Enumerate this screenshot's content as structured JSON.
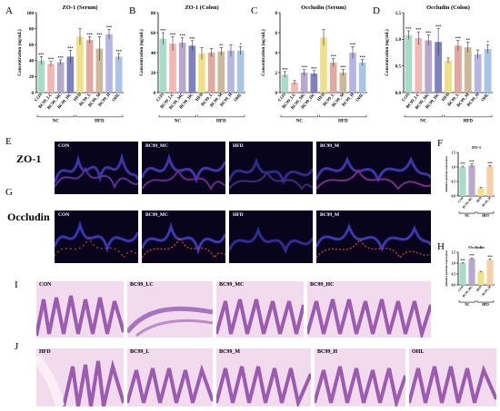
{
  "panel_letters": {
    "A": "A",
    "B": "B",
    "C": "C",
    "D": "D",
    "E": "E",
    "F": "F",
    "G": "G",
    "H": "H",
    "I": "I",
    "J": "J"
  },
  "microscopy": {
    "row_e_label": "ZO-1",
    "row_g_label": "Occludin",
    "images": [
      "CON",
      "BC99_MC",
      "HFD",
      "BC99_M"
    ]
  },
  "histology": {
    "row_i": [
      "CON",
      "BC99_LC",
      "BC99_MC",
      "BC99_HC"
    ],
    "row_j": [
      "HFD",
      "BC99_L",
      "BC99_M",
      "BC99_H",
      "OHL"
    ]
  },
  "chart_data": [
    {
      "type": "bar",
      "id": "A",
      "title": "ZO-1 (Serum)",
      "ylabel": "Concentration (ng/mL)",
      "ylim": [
        0,
        100
      ],
      "yticks": [
        0,
        20,
        40,
        60,
        80,
        100
      ],
      "categories": [
        "CON",
        "BC99_LC",
        "BC99_MC",
        "BC99_HC",
        "HFD",
        "BC99_L",
        "BC99_M",
        "BC99_H",
        "OHL"
      ],
      "values": [
        40,
        36,
        38,
        45,
        70,
        66,
        55,
        73,
        45
      ],
      "errors": [
        5,
        3,
        3,
        8,
        10,
        4,
        15,
        6,
        4
      ],
      "significance": [
        "***",
        "***",
        "***",
        "***",
        "",
        "***",
        "***",
        "***",
        "***"
      ],
      "groups": [
        {
          "label": "NC",
          "start": 0,
          "end": 3
        },
        {
          "label": "HFD",
          "start": 4,
          "end": 8
        }
      ],
      "colors": [
        "#a9dcc8",
        "#f3b6b3",
        "#b7a9cc",
        "#7e82c2",
        "#f0e08a",
        "#e2a89e",
        "#cdb89a",
        "#b7b5e4",
        "#a9c4e8"
      ]
    },
    {
      "type": "bar",
      "id": "B",
      "title": "ZO-1 (Colon)",
      "ylabel": "Concentration (ng/mL)",
      "ylim": [
        0,
        80
      ],
      "yticks": [
        0,
        20,
        40,
        60,
        80
      ],
      "categories": [
        "CON",
        "BC99_LC",
        "BC99_MC",
        "BC99_HC",
        "HFD",
        "BC99_L",
        "BC99_M",
        "BC99_H",
        "OHL"
      ],
      "values": [
        54,
        49,
        50,
        47,
        39,
        40,
        41,
        42,
        42
      ],
      "errors": [
        6,
        7,
        5,
        5,
        6,
        4,
        4,
        6,
        4
      ],
      "significance": [
        "***",
        "***",
        "***",
        "***",
        "",
        "",
        "**",
        "",
        "*"
      ],
      "groups": [
        {
          "label": "NC",
          "start": 0,
          "end": 3
        },
        {
          "label": "HFD",
          "start": 4,
          "end": 8
        }
      ],
      "colors": [
        "#a9dcc8",
        "#f3b6b3",
        "#b7a9cc",
        "#7e82c2",
        "#f0e08a",
        "#e2a89e",
        "#cdb89a",
        "#b7b5e4",
        "#a9c4e8"
      ]
    },
    {
      "type": "bar",
      "id": "C",
      "title": "Occludin (Serum)",
      "ylabel": "Concentration (ng/mL)",
      "ylim": [
        0,
        8
      ],
      "yticks": [
        0,
        2,
        4,
        6,
        8
      ],
      "categories": [
        "CON",
        "BC99_LC",
        "BC99_MC",
        "BC99_HC",
        "HFD",
        "BC99_L",
        "BC99_M",
        "BC99_H",
        "OHL"
      ],
      "values": [
        1.8,
        1.0,
        2.0,
        1.9,
        5.5,
        3.0,
        2.0,
        4.0,
        3.0
      ],
      "errors": [
        0.3,
        0.2,
        0.3,
        0.3,
        0.8,
        0.4,
        0.3,
        0.6,
        0.3
      ],
      "significance": [
        "***",
        "",
        "***",
        "***",
        "",
        "***",
        "***",
        "***",
        "***"
      ],
      "groups": [
        {
          "label": "NC",
          "start": 0,
          "end": 3
        },
        {
          "label": "HFD",
          "start": 4,
          "end": 8
        }
      ],
      "colors": [
        "#a9dcc8",
        "#f3b6b3",
        "#b7a9cc",
        "#7e82c2",
        "#f0e08a",
        "#e2a89e",
        "#cdb89a",
        "#b7b5e4",
        "#a9c4e8"
      ]
    },
    {
      "type": "bar",
      "id": "D",
      "title": "Occludin (Colon)",
      "ylabel": "Concentration (ng/mL)",
      "ylim": [
        0,
        1.5
      ],
      "yticks": [
        0.0,
        0.5,
        1.0,
        1.5
      ],
      "categories": [
        "CON",
        "BC99_LC",
        "BC99_MC",
        "BC99_HC",
        "HFD",
        "BC99_L",
        "BC99_M",
        "BC99_H",
        "OHL"
      ],
      "values": [
        1.08,
        1.02,
        0.98,
        0.95,
        0.6,
        0.88,
        0.85,
        0.72,
        0.82
      ],
      "errors": [
        0.08,
        0.12,
        0.1,
        0.25,
        0.05,
        0.1,
        0.1,
        0.08,
        0.08
      ],
      "significance": [
        "***",
        "***",
        "***",
        "***",
        "",
        "***",
        "**",
        "",
        "*"
      ],
      "groups": [
        {
          "label": "NC",
          "start": 0,
          "end": 3
        },
        {
          "label": "HFD",
          "start": 4,
          "end": 8
        }
      ],
      "colors": [
        "#a9dcc8",
        "#f3b6b3",
        "#b7a9cc",
        "#7e82c2",
        "#f0e08a",
        "#e2a89e",
        "#cdb89a",
        "#b7b5e4",
        "#a9c4e8"
      ]
    },
    {
      "type": "bar",
      "id": "F",
      "title": "ZO-1",
      "ylabel": "Relative protein expression",
      "ylim": [
        0,
        1.5
      ],
      "yticks": [
        0.0,
        0.5,
        1.0,
        1.5
      ],
      "categories": [
        "CON",
        "BC99_MC",
        "HFD",
        "BC99_M"
      ],
      "values": [
        1.0,
        1.05,
        0.27,
        1.02
      ],
      "errors": [
        0.03,
        0.06,
        0.02,
        0.03
      ],
      "significance": [
        "***",
        "***",
        "",
        "***"
      ],
      "groups": [
        {
          "label": "NC",
          "start": 0,
          "end": 1
        },
        {
          "label": "HFD",
          "start": 2,
          "end": 3
        }
      ],
      "colors": [
        "#a9dcc8",
        "#b7a9cc",
        "#f0e08a",
        "#f5cfa6"
      ]
    },
    {
      "type": "bar",
      "id": "H",
      "title": "Occludin",
      "ylabel": "Relative protein expression",
      "ylim": [
        0,
        1.5
      ],
      "yticks": [
        0.0,
        0.5,
        1.0,
        1.5
      ],
      "categories": [
        "CON",
        "BC99_MC",
        "HFD",
        "BC99_M"
      ],
      "values": [
        1.0,
        1.2,
        0.6,
        1.15
      ],
      "errors": [
        0.03,
        0.04,
        0.02,
        0.03
      ],
      "significance": [
        "***",
        "***",
        "",
        "***"
      ],
      "groups": [
        {
          "label": "NC",
          "start": 0,
          "end": 1
        },
        {
          "label": "HFD",
          "start": 2,
          "end": 3
        }
      ],
      "colors": [
        "#a9dcc8",
        "#b7a9cc",
        "#f0e08a",
        "#f5cfa6"
      ]
    }
  ]
}
